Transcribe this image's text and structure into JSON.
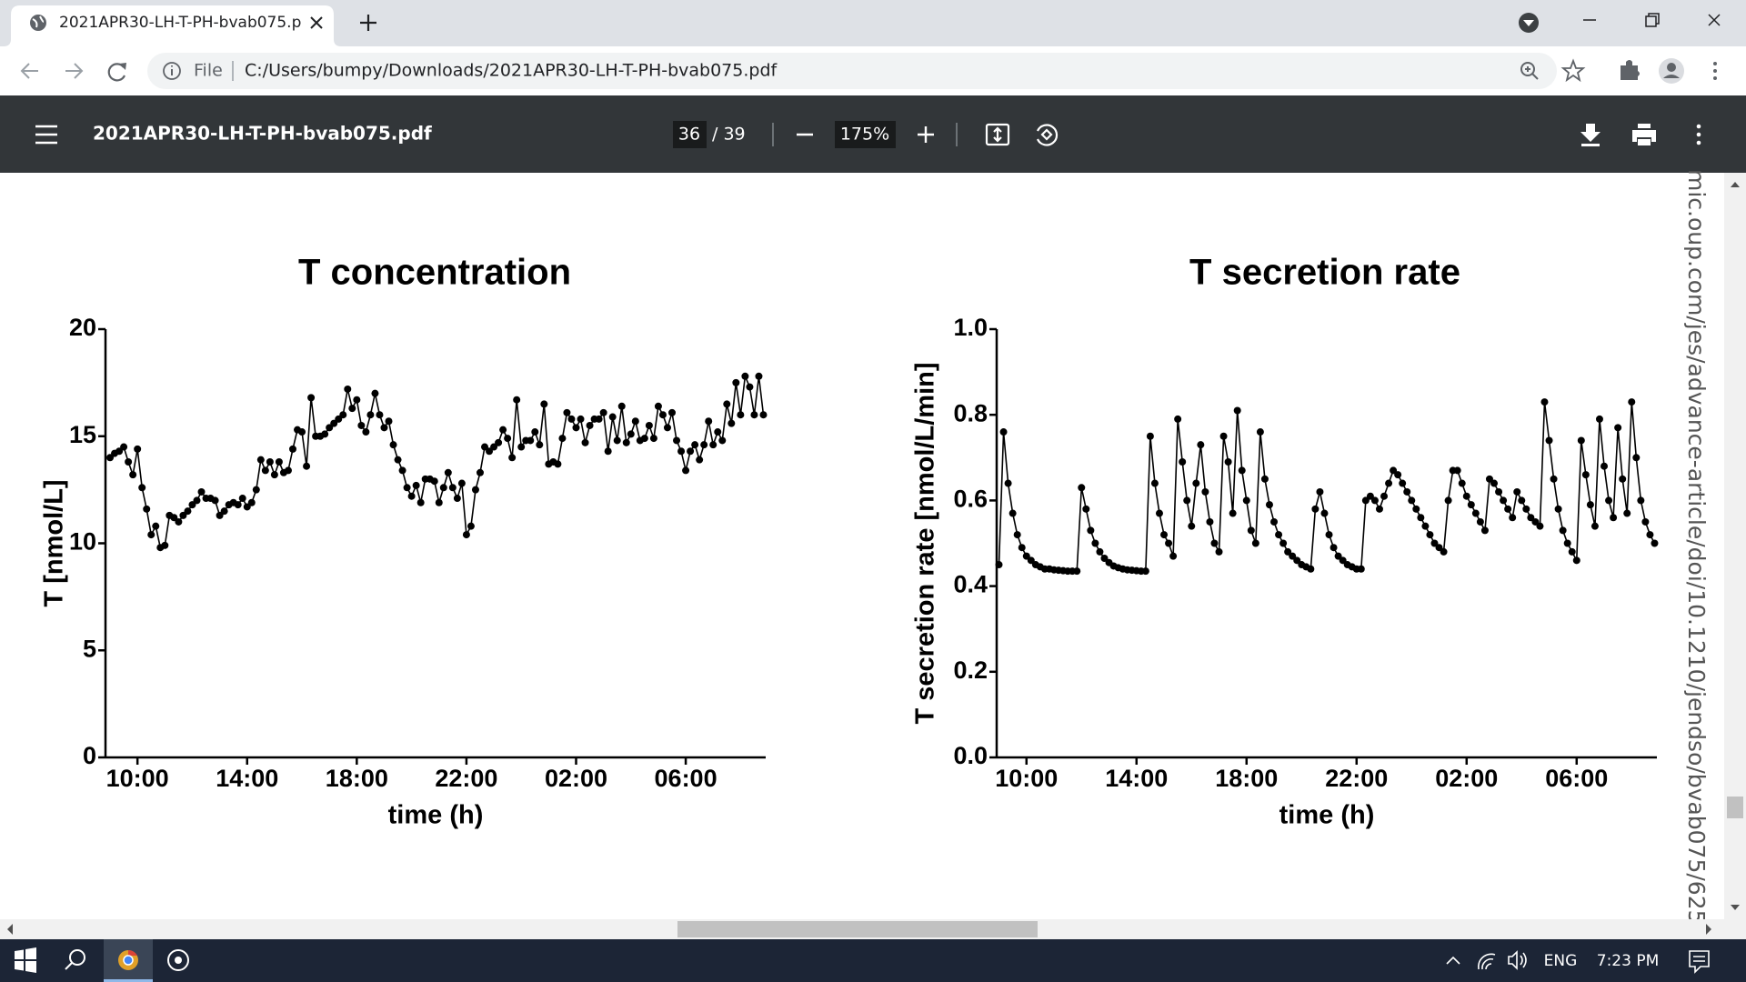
{
  "browser": {
    "tab_title": "2021APR30-LH-T-PH-bvab075.p",
    "scheme": "File",
    "url": "C:/Users/bumpy/Downloads/2021APR30-LH-T-PH-bvab075.pdf",
    "pdf_title": "2021APR30-LH-T-PH-bvab075.pdf",
    "page_current": "36",
    "page_total": "/ 39",
    "zoom": "175%",
    "side_text": "mic.oup.com/jes/advance-article/doi/10.1210/jendso/bvab075/625",
    "language": "ENG",
    "clock": "7:23 PM"
  },
  "chart_data": [
    {
      "type": "line",
      "title": "T concentration",
      "x_label": "time (h)",
      "y_label": "T [nmol/L]",
      "color": "#000000",
      "xlim": [
        530,
        1975
      ],
      "xticks": [
        {
          "value": 600,
          "label": "10:00"
        },
        {
          "value": 840,
          "label": "14:00"
        },
        {
          "value": 1080,
          "label": "18:00"
        },
        {
          "value": 1320,
          "label": "22:00"
        },
        {
          "value": 1560,
          "label": "02:00"
        },
        {
          "value": 1800,
          "label": "06:00"
        }
      ],
      "ylim": [
        0,
        20
      ],
      "yticks": [
        0,
        5,
        10,
        15,
        20
      ],
      "x": [
        540,
        550,
        560,
        570,
        580,
        590,
        600,
        610,
        620,
        630,
        640,
        650,
        660,
        670,
        680,
        690,
        700,
        710,
        720,
        730,
        740,
        750,
        760,
        770,
        780,
        790,
        800,
        810,
        820,
        830,
        840,
        850,
        860,
        870,
        880,
        890,
        900,
        910,
        920,
        930,
        940,
        950,
        960,
        970,
        980,
        990,
        1000,
        1010,
        1020,
        1030,
        1040,
        1050,
        1060,
        1070,
        1080,
        1090,
        1100,
        1110,
        1120,
        1130,
        1140,
        1150,
        1160,
        1170,
        1180,
        1190,
        1200,
        1210,
        1220,
        1230,
        1240,
        1250,
        1260,
        1270,
        1280,
        1290,
        1300,
        1310,
        1320,
        1330,
        1340,
        1350,
        1360,
        1370,
        1380,
        1390,
        1400,
        1410,
        1420,
        1430,
        1440,
        1450,
        1460,
        1470,
        1480,
        1490,
        1500,
        1510,
        1520,
        1530,
        1540,
        1550,
        1560,
        1570,
        1580,
        1590,
        1600,
        1610,
        1620,
        1630,
        1640,
        1650,
        1660,
        1670,
        1680,
        1690,
        1700,
        1710,
        1720,
        1730,
        1740,
        1750,
        1760,
        1770,
        1780,
        1790,
        1800,
        1810,
        1820,
        1830,
        1840,
        1850,
        1860,
        1870,
        1880,
        1890,
        1900,
        1910,
        1920,
        1930,
        1940,
        1950,
        1960,
        1970
      ],
      "values": [
        14.0,
        14.2,
        14.3,
        14.5,
        13.8,
        13.2,
        14.4,
        12.6,
        11.6,
        10.4,
        10.8,
        9.8,
        9.9,
        11.3,
        11.2,
        11.0,
        11.3,
        11.5,
        11.8,
        12.0,
        12.4,
        12.1,
        12.1,
        12.0,
        11.3,
        11.5,
        11.8,
        11.9,
        11.8,
        12.1,
        11.7,
        11.9,
        12.5,
        13.9,
        13.4,
        13.8,
        13.2,
        13.8,
        13.3,
        13.4,
        14.4,
        15.3,
        15.2,
        13.6,
        16.8,
        15.0,
        15.0,
        15.1,
        15.4,
        15.6,
        15.8,
        16.0,
        17.2,
        16.3,
        16.7,
        15.5,
        15.2,
        16.0,
        17.0,
        16.0,
        15.4,
        15.7,
        14.6,
        13.9,
        13.4,
        12.6,
        12.2,
        12.7,
        11.9,
        13.0,
        13.0,
        12.9,
        11.9,
        12.6,
        13.3,
        12.6,
        12.1,
        12.8,
        10.4,
        10.8,
        12.5,
        13.3,
        14.5,
        14.3,
        14.5,
        14.7,
        15.3,
        14.9,
        14.0,
        16.7,
        14.5,
        14.8,
        14.8,
        15.2,
        14.6,
        16.5,
        13.7,
        13.8,
        13.7,
        14.9,
        16.1,
        15.8,
        15.4,
        15.8,
        14.7,
        15.5,
        15.8,
        15.8,
        16.1,
        14.3,
        15.9,
        14.8,
        16.4,
        14.7,
        15.1,
        15.7,
        14.8,
        14.9,
        15.5,
        14.9,
        16.4,
        16.0,
        15.4,
        16.1,
        14.8,
        14.3,
        13.4,
        14.3,
        14.6,
        13.9,
        14.6,
        15.7,
        14.6,
        15.2,
        14.8,
        16.5,
        15.6,
        17.5,
        16.0,
        17.8,
        17.3,
        16.0,
        17.8,
        16.0
      ]
    },
    {
      "type": "line",
      "title": "T secretion rate",
      "x_label": "time (h)",
      "y_label": "T secretion rate [nmol/L/min]",
      "color": "#000000",
      "xlim": [
        535,
        1975
      ],
      "xticks": [
        {
          "value": 600,
          "label": "10:00"
        },
        {
          "value": 840,
          "label": "14:00"
        },
        {
          "value": 1080,
          "label": "18:00"
        },
        {
          "value": 1320,
          "label": "22:00"
        },
        {
          "value": 1560,
          "label": "02:00"
        },
        {
          "value": 1800,
          "label": "06:00"
        }
      ],
      "ylim": [
        0,
        1
      ],
      "yticks": [
        {
          "value": 0,
          "label": "0.0"
        },
        0.2,
        0.4,
        0.6,
        0.8,
        {
          "value": 1,
          "label": "1.0"
        }
      ],
      "x": [
        540,
        550,
        560,
        570,
        580,
        590,
        600,
        610,
        620,
        630,
        640,
        650,
        660,
        670,
        680,
        690,
        700,
        710,
        720,
        730,
        740,
        750,
        760,
        770,
        780,
        790,
        800,
        810,
        820,
        830,
        840,
        850,
        860,
        870,
        880,
        890,
        900,
        910,
        920,
        930,
        940,
        950,
        960,
        970,
        980,
        990,
        1000,
        1010,
        1020,
        1030,
        1040,
        1050,
        1060,
        1070,
        1080,
        1090,
        1100,
        1110,
        1120,
        1130,
        1140,
        1150,
        1160,
        1170,
        1180,
        1190,
        1200,
        1210,
        1220,
        1230,
        1240,
        1250,
        1260,
        1270,
        1280,
        1290,
        1300,
        1310,
        1320,
        1330,
        1340,
        1350,
        1360,
        1370,
        1380,
        1390,
        1400,
        1410,
        1420,
        1430,
        1440,
        1450,
        1460,
        1470,
        1480,
        1490,
        1500,
        1510,
        1520,
        1530,
        1540,
        1550,
        1560,
        1570,
        1580,
        1590,
        1600,
        1610,
        1620,
        1630,
        1640,
        1650,
        1660,
        1670,
        1680,
        1690,
        1700,
        1710,
        1720,
        1730,
        1740,
        1750,
        1760,
        1770,
        1780,
        1790,
        1800,
        1810,
        1820,
        1830,
        1840,
        1850,
        1860,
        1870,
        1880,
        1890,
        1900,
        1910,
        1920,
        1930,
        1940,
        1950,
        1960,
        1970
      ],
      "values": [
        0.45,
        0.76,
        0.64,
        0.57,
        0.52,
        0.49,
        0.47,
        0.46,
        0.45,
        0.445,
        0.44,
        0.44,
        0.438,
        0.437,
        0.436,
        0.435,
        0.435,
        0.435,
        0.63,
        0.58,
        0.53,
        0.5,
        0.48,
        0.465,
        0.455,
        0.447,
        0.443,
        0.44,
        0.438,
        0.437,
        0.436,
        0.435,
        0.435,
        0.75,
        0.64,
        0.57,
        0.52,
        0.5,
        0.47,
        0.79,
        0.69,
        0.6,
        0.54,
        0.64,
        0.73,
        0.62,
        0.55,
        0.5,
        0.48,
        0.75,
        0.69,
        0.57,
        0.81,
        0.67,
        0.6,
        0.53,
        0.5,
        0.76,
        0.65,
        0.59,
        0.55,
        0.52,
        0.5,
        0.48,
        0.47,
        0.46,
        0.45,
        0.445,
        0.44,
        0.58,
        0.62,
        0.57,
        0.52,
        0.49,
        0.47,
        0.46,
        0.45,
        0.445,
        0.44,
        0.44,
        0.6,
        0.61,
        0.6,
        0.58,
        0.61,
        0.64,
        0.67,
        0.66,
        0.64,
        0.62,
        0.6,
        0.58,
        0.56,
        0.54,
        0.52,
        0.5,
        0.49,
        0.48,
        0.6,
        0.67,
        0.67,
        0.64,
        0.61,
        0.59,
        0.57,
        0.55,
        0.53,
        0.65,
        0.64,
        0.62,
        0.6,
        0.58,
        0.56,
        0.62,
        0.6,
        0.58,
        0.56,
        0.55,
        0.54,
        0.83,
        0.74,
        0.65,
        0.58,
        0.53,
        0.5,
        0.48,
        0.46,
        0.74,
        0.66,
        0.59,
        0.54,
        0.79,
        0.68,
        0.6,
        0.56,
        0.77,
        0.65,
        0.57,
        0.83,
        0.7,
        0.6,
        0.55,
        0.52,
        0.5
      ]
    }
  ]
}
